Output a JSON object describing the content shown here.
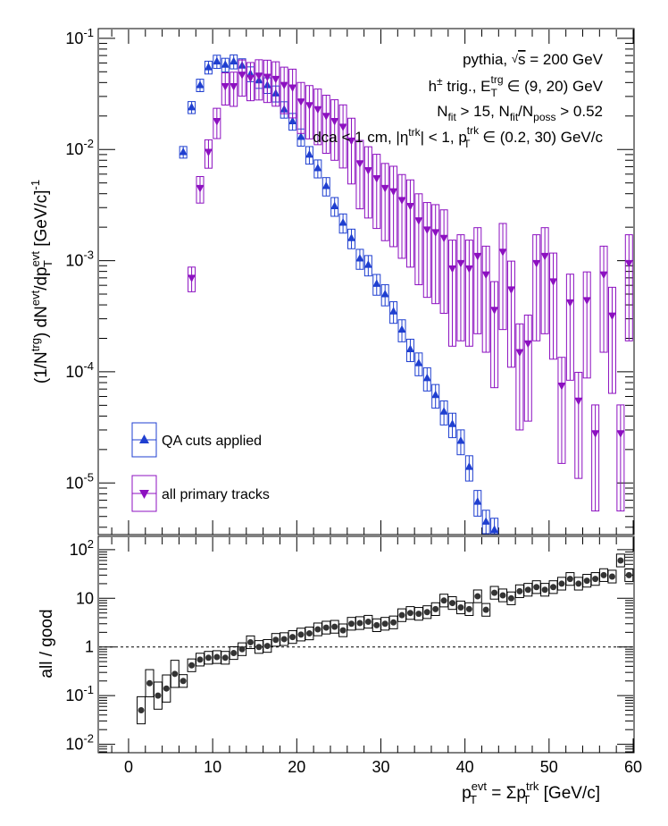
{
  "top_panel": {
    "ylabel": "(1/N^{trg}) dN^{evt}/dp_{T}^{evt} [GeV/c]^{-1}",
    "annotations": [
      "pythia, √s = 200 GeV",
      "h± trig., E_T^trg ∈ (9, 20) GeV",
      "N_fit > 15, N_fit/N_poss > 0.52",
      "dca < 1 cm, |η^trk| < 1, p_T^trk ∈ (0.2, 30) GeV/c"
    ],
    "legend": [
      "QA cuts applied",
      "all primary tracks"
    ],
    "y_ticks": [
      "10^{-5}",
      "10^{-4}",
      "10^{-3}",
      "10^{-2}",
      "10^{-1}"
    ]
  },
  "bottom_panel": {
    "ylabel": "all / good",
    "y_ticks": [
      "10^{-2}",
      "10^{-1}",
      "1",
      "10",
      "10^{2}"
    ]
  },
  "xlabel": "p_T^evt = Σp_T^trk [GeV/c]",
  "x_ticks": [
    "0",
    "10",
    "20",
    "30",
    "40",
    "50",
    "60"
  ],
  "colors": {
    "qa": "#1f3fd0",
    "all": "#8c10c0",
    "ratio": "#333333"
  },
  "chart_data": [
    {
      "type": "scatter",
      "title": "",
      "xlabel": "p_T^evt = Σp_T^trk [GeV/c]",
      "ylabel": "(1/N^trg) dN^evt/dp_T^evt [GeV/c]^-1",
      "log_y": true,
      "xlim": [
        -3.5,
        60
      ],
      "ylim": [
        3.5e-06,
        0.12
      ],
      "legend_position": "bottom-left",
      "series": [
        {
          "name": "QA cuts applied",
          "marker": "triangle-up",
          "x": [
            6.5,
            7.5,
            8.5,
            9.5,
            10.5,
            11.5,
            12.5,
            13.5,
            14.5,
            15.5,
            16.5,
            17.5,
            18.5,
            19.5,
            20.5,
            21.5,
            22.5,
            23.5,
            24.5,
            25.5,
            26.5,
            27.5,
            28.5,
            29.5,
            30.5,
            31.5,
            32.5,
            33.5,
            34.5,
            35.5,
            36.5,
            37.5,
            38.5,
            39.5,
            40.5,
            41.5,
            42.5,
            43.5
          ],
          "y": [
            0.0095,
            0.024,
            0.038,
            0.055,
            0.062,
            0.058,
            0.062,
            0.057,
            0.048,
            0.042,
            0.038,
            0.032,
            0.023,
            0.018,
            0.013,
            0.009,
            0.0068,
            0.0047,
            0.0031,
            0.0022,
            0.0016,
            0.00105,
            0.00092,
            0.00062,
            0.0005,
            0.00035,
            0.00024,
            0.00016,
            0.00012,
            8.8e-05,
            6.2e-05,
            4.4e-05,
            3.4e-05,
            2.4e-05,
            1.4e-05,
            6.8e-06,
            4.5e-06,
            3.8e-06
          ]
        },
        {
          "name": "all primary tracks",
          "marker": "triangle-down",
          "x": [
            7.5,
            8.5,
            9.5,
            10.5,
            11.5,
            12.5,
            13.5,
            14.5,
            15.5,
            16.5,
            17.5,
            18.5,
            19.5,
            20.5,
            21.5,
            22.5,
            23.5,
            24.5,
            25.5,
            26.5,
            27.5,
            28.5,
            29.5,
            30.5,
            31.5,
            32.5,
            33.5,
            34.5,
            35.5,
            36.5,
            37.5,
            38.5,
            39.5,
            40.5,
            41.5,
            42.5,
            43.5,
            44.5,
            45.5,
            46.5,
            47.5,
            48.5,
            49.5,
            50.5,
            51.5,
            52.5,
            53.5,
            54.5,
            55.5,
            56.5,
            57.5,
            58.5,
            59.5
          ],
          "y": [
            0.0007,
            0.0045,
            0.0095,
            0.018,
            0.037,
            0.037,
            0.047,
            0.044,
            0.046,
            0.045,
            0.043,
            0.038,
            0.036,
            0.027,
            0.025,
            0.023,
            0.02,
            0.018,
            0.016,
            0.012,
            0.0075,
            0.0065,
            0.0055,
            0.0045,
            0.0042,
            0.0035,
            0.0031,
            0.0023,
            0.0019,
            0.0018,
            0.0016,
            0.00085,
            0.00095,
            0.00085,
            0.0011,
            0.00075,
            0.00036,
            0.0012,
            0.00055,
            0.00015,
            0.00018,
            0.00095,
            0.0011,
            0.00065,
            7.5e-05,
            0.00042,
            5.5e-05,
            0.00044,
            2.8e-05,
            0.00075,
            0.00032,
            2.8e-05,
            0.00095
          ]
        }
      ]
    },
    {
      "type": "scatter",
      "title": "",
      "xlabel": "p_T^evt = Σp_T^trk [GeV/c]",
      "ylabel": "all / good",
      "log_y": true,
      "xlim": [
        -3.5,
        60
      ],
      "ylim": [
        0.007,
        180
      ],
      "reference_line": 1,
      "series": [
        {
          "name": "",
          "marker": "circle",
          "x": [
            1.5,
            2.5,
            3.5,
            4.5,
            5.5,
            6.5,
            7.5,
            8.5,
            9.5,
            10.5,
            11.5,
            12.5,
            13.5,
            14.5,
            15.5,
            16.5,
            17.5,
            18.5,
            19.5,
            20.5,
            21.5,
            22.5,
            23.5,
            24.5,
            25.5,
            26.5,
            27.5,
            28.5,
            29.5,
            30.5,
            31.5,
            32.5,
            33.5,
            34.5,
            35.5,
            36.5,
            37.5,
            38.5,
            39.5,
            40.5,
            41.5,
            42.5,
            43.5,
            44.5,
            45.5,
            46.5,
            47.5,
            48.5,
            49.5,
            50.5,
            51.5,
            52.5,
            53.5,
            54.5,
            55.5,
            56.5,
            57.5,
            58.5,
            59.5
          ],
          "y": [
            0.05,
            0.18,
            0.1,
            0.14,
            0.28,
            0.2,
            0.42,
            0.55,
            0.6,
            0.62,
            0.6,
            0.75,
            0.9,
            1.25,
            1.0,
            1.05,
            1.4,
            1.45,
            1.6,
            1.8,
            1.9,
            2.3,
            2.5,
            2.6,
            2.2,
            3.0,
            3.1,
            3.3,
            2.8,
            3.0,
            3.2,
            4.5,
            5.0,
            4.8,
            5.2,
            6.0,
            9.0,
            8.0,
            6.5,
            6.0,
            11.0,
            5.8,
            13.0,
            11.5,
            10.0,
            14.0,
            15.0,
            17.0,
            15.0,
            17.0,
            20.0,
            25.0,
            20.0,
            23.0,
            25.0,
            30.0,
            28.0,
            60.0,
            30.0
          ]
        }
      ]
    }
  ]
}
